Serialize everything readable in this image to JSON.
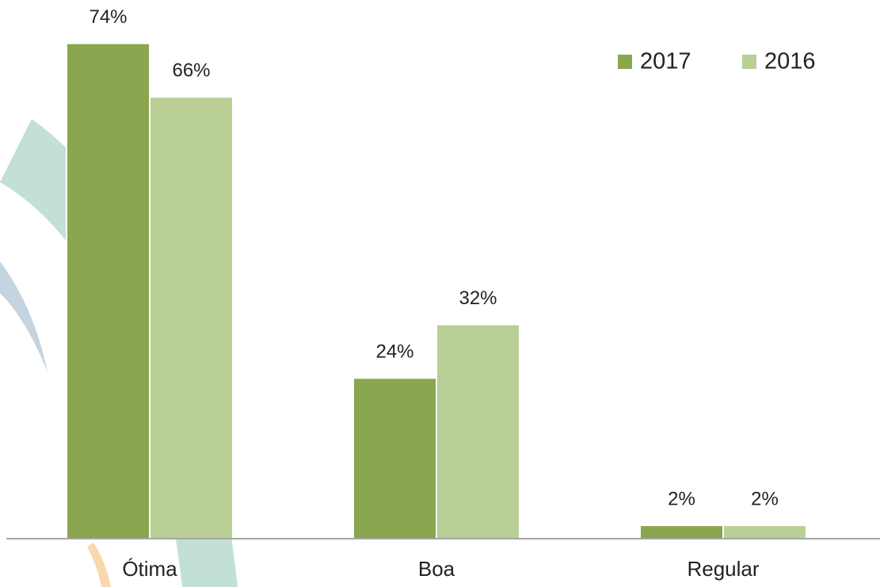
{
  "chart_data": {
    "type": "bar",
    "categories": [
      "Ótima",
      "Boa",
      "Regular"
    ],
    "series": [
      {
        "name": "2017",
        "color": "#8aa64e",
        "values": [
          74,
          24,
          2
        ],
        "value_labels": [
          "74%",
          "24%",
          "2%"
        ]
      },
      {
        "name": "2016",
        "color": "#b9cf96",
        "values": [
          66,
          32,
          2
        ],
        "value_labels": [
          "66%",
          "32%",
          "2%"
        ]
      }
    ],
    "legend": "top-right"
  }
}
